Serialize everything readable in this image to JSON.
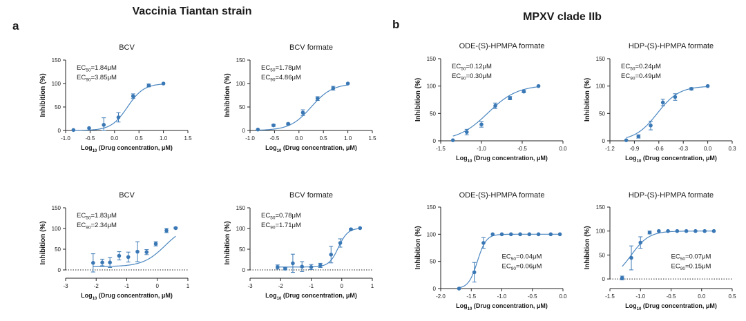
{
  "headings": {
    "left": "Vaccinia Tiantan strain",
    "right": "MPXV clade IIb",
    "panel_a": "a",
    "panel_b": "b"
  },
  "colors": {
    "data": "#3a78b5",
    "curve": "#4a86c0",
    "axis": "#222222"
  },
  "chart_data": [
    {
      "type": "scatter",
      "title": "BCV",
      "xlabel_pre": "Log",
      "xlabel_sub": "10",
      "xlabel_post": " (Drug concentration, μM)",
      "ylabel": "Inhibition (%)",
      "xlim": [
        -1.0,
        1.5
      ],
      "ylim": [
        0,
        150
      ],
      "xticks": [
        -1.0,
        -0.5,
        0.0,
        0.5,
        1.0,
        1.5
      ],
      "xtick_labels": [
        "-1.0",
        "-0.5",
        "0.0",
        "0.5",
        "1.0",
        "1.5"
      ],
      "yticks": [
        0,
        50,
        100,
        150
      ],
      "zero_line": false,
      "ec50": "1.84μM",
      "ec90": "3.85μM",
      "ec_label_pos": "top-left",
      "fit": {
        "bottom": 0,
        "top": 100,
        "logEC50": 0.265,
        "hill": 2.6
      },
      "points": [
        {
          "x": -0.84,
          "y": 1,
          "err": 1
        },
        {
          "x": -0.52,
          "y": 5,
          "err": 1
        },
        {
          "x": -0.22,
          "y": 12,
          "err": 15
        },
        {
          "x": 0.08,
          "y": 28,
          "err": 10
        },
        {
          "x": 0.38,
          "y": 73,
          "err": 5
        },
        {
          "x": 0.7,
          "y": 96,
          "err": 3
        },
        {
          "x": 1.0,
          "y": 100,
          "err": 1
        }
      ]
    },
    {
      "type": "scatter",
      "title": "BCV formate",
      "xlabel_pre": "Log",
      "xlabel_sub": "10",
      "xlabel_post": " (Drug concentration, μM)",
      "ylabel": "Inhibition (%)",
      "xlim": [
        -1.0,
        1.5
      ],
      "ylim": [
        0,
        150
      ],
      "xticks": [
        -1.0,
        -0.5,
        0.0,
        0.5,
        1.0,
        1.5
      ],
      "xtick_labels": [
        "-1.0",
        "-0.5",
        "0.0",
        "0.5",
        "1.0",
        "1.5"
      ],
      "yticks": [
        0,
        50,
        100,
        150
      ],
      "zero_line": false,
      "ec50": "1.78μM",
      "ec90": "4.86μM",
      "ec_label_pos": "top-left",
      "fit": {
        "bottom": 0,
        "top": 100,
        "logEC50": 0.25,
        "hill": 2.0
      },
      "points": [
        {
          "x": -0.84,
          "y": 2,
          "err": 1
        },
        {
          "x": -0.52,
          "y": 11,
          "err": 2
        },
        {
          "x": -0.22,
          "y": 14,
          "err": 2
        },
        {
          "x": 0.08,
          "y": 38,
          "err": 6
        },
        {
          "x": 0.38,
          "y": 68,
          "err": 4
        },
        {
          "x": 0.7,
          "y": 90,
          "err": 4
        },
        {
          "x": 1.0,
          "y": 100,
          "err": 1
        }
      ]
    },
    {
      "type": "scatter",
      "title": "BCV",
      "xlabel_pre": "Log",
      "xlabel_sub": "10",
      "xlabel_post": " (Drug concentration, μM)",
      "ylabel": "Inhibition (%)",
      "xlim": [
        -3,
        1
      ],
      "ylim": [
        -20,
        150
      ],
      "xticks": [
        -3,
        -2,
        -1,
        0,
        1
      ],
      "xtick_labels": [
        "-3",
        "-2",
        "-1",
        "0",
        "1"
      ],
      "yticks": [
        0,
        50,
        100,
        150
      ],
      "zero_line": true,
      "ec50": "1.83μM",
      "ec90": "2.34μM",
      "ec_label_pos": "top-left",
      "fit": {
        "bottom": 8,
        "top": 110,
        "logEC50": 0.26,
        "hill": 1.2
      },
      "points": [
        {
          "x": -2.1,
          "y": 17,
          "err": 22
        },
        {
          "x": -1.8,
          "y": 18,
          "err": 8
        },
        {
          "x": -1.55,
          "y": 18,
          "err": 12
        },
        {
          "x": -1.25,
          "y": 34,
          "err": 10
        },
        {
          "x": -0.95,
          "y": 31,
          "err": 12
        },
        {
          "x": -0.65,
          "y": 44,
          "err": 24
        },
        {
          "x": -0.35,
          "y": 43,
          "err": 6
        },
        {
          "x": -0.05,
          "y": 63,
          "err": 5
        },
        {
          "x": 0.3,
          "y": 95,
          "err": 5
        },
        {
          "x": 0.6,
          "y": 101,
          "err": 2
        }
      ]
    },
    {
      "type": "scatter",
      "title": "BCV formate",
      "xlabel_pre": "Log",
      "xlabel_sub": "10",
      "xlabel_post": " (Drug concentration, μM)",
      "ylabel": "Inhibition (%)",
      "xlim": [
        -3,
        1
      ],
      "ylim": [
        -20,
        150
      ],
      "xticks": [
        -3,
        -2,
        -1,
        0,
        1
      ],
      "xtick_labels": [
        "-3",
        "-2",
        "-1",
        "0",
        "1"
      ],
      "yticks": [
        0,
        50,
        100,
        150
      ],
      "zero_line": true,
      "ec50": "0.78μM",
      "ec90": "1.71μM",
      "ec_label_pos": "top-left",
      "fit": {
        "bottom": 7,
        "top": 101,
        "logEC50": -0.11,
        "hill": 2.8
      },
      "points": [
        {
          "x": -2.1,
          "y": 7,
          "err": 5
        },
        {
          "x": -1.85,
          "y": 3,
          "err": 3
        },
        {
          "x": -1.6,
          "y": 16,
          "err": 22
        },
        {
          "x": -1.3,
          "y": 8,
          "err": 12
        },
        {
          "x": -1.0,
          "y": 7,
          "err": 6
        },
        {
          "x": -0.7,
          "y": 11,
          "err": 5
        },
        {
          "x": -0.35,
          "y": 37,
          "err": 20
        },
        {
          "x": -0.05,
          "y": 65,
          "err": 10
        },
        {
          "x": 0.3,
          "y": 98,
          "err": 2
        },
        {
          "x": 0.6,
          "y": 101,
          "err": 1
        }
      ]
    },
    {
      "type": "scatter",
      "title": "ODE-(S)-HPMPA formate",
      "xlabel_pre": "Log",
      "xlabel_sub": "10",
      "xlabel_post": " (Drug concentration, μM)",
      "ylabel": "Inhibition (%)",
      "xlim": [
        -1.5,
        0.0
      ],
      "ylim": [
        0,
        150
      ],
      "xticks": [
        -1.5,
        -1.0,
        -0.5,
        0.0
      ],
      "xtick_labels": [
        "-1.5",
        "-1.0",
        "-0.5",
        "0.0"
      ],
      "yticks": [
        0,
        50,
        100,
        150
      ],
      "zero_line": false,
      "ec50": "0.12μM",
      "ec90": "0.30μM",
      "ec_label_pos": "top-left",
      "fit": {
        "bottom": 0,
        "top": 102,
        "logEC50": -0.92,
        "hill": 2.4
      },
      "points": [
        {
          "x": -1.35,
          "y": 1,
          "err": 1
        },
        {
          "x": -1.18,
          "y": 16,
          "err": 5
        },
        {
          "x": -1.0,
          "y": 30,
          "err": 5
        },
        {
          "x": -0.83,
          "y": 64,
          "err": 5
        },
        {
          "x": -0.65,
          "y": 78,
          "err": 3
        },
        {
          "x": -0.48,
          "y": 90,
          "err": 2
        },
        {
          "x": -0.3,
          "y": 100,
          "err": 1
        }
      ]
    },
    {
      "type": "scatter",
      "title": "HDP-(S)-HPMPA formate",
      "xlabel_pre": "Log",
      "xlabel_sub": "10",
      "xlabel_post": " (Drug concentration, μM)",
      "ylabel": "Inhibition (%)",
      "xlim": [
        -1.2,
        0.3
      ],
      "ylim": [
        0,
        150
      ],
      "xticks": [
        -1.2,
        -0.9,
        -0.6,
        -0.3,
        0.0,
        0.3
      ],
      "xtick_labels": [
        "-1.2",
        "-0.9",
        "-0.6",
        "-0.3",
        "0.0",
        "0.3"
      ],
      "yticks": [
        0,
        50,
        100,
        150
      ],
      "zero_line": false,
      "ec50": "0.24μM",
      "ec90": "0.49μM",
      "ec_label_pos": "top-left",
      "fit": {
        "bottom": 0,
        "top": 100,
        "logEC50": -0.62,
        "hill": 3.2
      },
      "points": [
        {
          "x": -1.0,
          "y": 1,
          "err": 1
        },
        {
          "x": -0.85,
          "y": 8,
          "err": 3
        },
        {
          "x": -0.7,
          "y": 28,
          "err": 8
        },
        {
          "x": -0.55,
          "y": 70,
          "err": 6
        },
        {
          "x": -0.4,
          "y": 80,
          "err": 6
        },
        {
          "x": -0.2,
          "y": 95,
          "err": 2
        },
        {
          "x": 0.0,
          "y": 100,
          "err": 1
        }
      ]
    },
    {
      "type": "scatter",
      "title": "ODE-(S)-HPMPA formate",
      "xlabel_pre": "Log",
      "xlabel_sub": "10",
      "xlabel_post": " (Drug concentration, μM)",
      "ylabel": "Inhibition (%)",
      "xlim": [
        -2.0,
        0.0
      ],
      "ylim": [
        0,
        150
      ],
      "xticks": [
        -2.0,
        -1.5,
        -1.0,
        -0.5,
        0.0
      ],
      "xtick_labels": [
        "-2.0",
        "-1.5",
        "-1.0",
        "-0.5",
        "0.0"
      ],
      "yticks": [
        0,
        50,
        100,
        150
      ],
      "zero_line": false,
      "ec50": "0.04μM",
      "ec90": "0.06μM",
      "ec_label_pos": "bottom-right",
      "fit": {
        "bottom": 0,
        "top": 100,
        "logEC50": -1.4,
        "hill": 6.0
      },
      "points": [
        {
          "x": -1.7,
          "y": 0,
          "err": 1
        },
        {
          "x": -1.45,
          "y": 30,
          "err": 18
        },
        {
          "x": -1.3,
          "y": 84,
          "err": 10
        },
        {
          "x": -1.15,
          "y": 100,
          "err": 1
        },
        {
          "x": -1.0,
          "y": 100,
          "err": 1
        },
        {
          "x": -0.85,
          "y": 100,
          "err": 1
        },
        {
          "x": -0.7,
          "y": 100,
          "err": 1
        },
        {
          "x": -0.55,
          "y": 100,
          "err": 1
        },
        {
          "x": -0.4,
          "y": 100,
          "err": 1
        },
        {
          "x": -0.2,
          "y": 100,
          "err": 1
        },
        {
          "x": -0.05,
          "y": 100,
          "err": 1
        }
      ]
    },
    {
      "type": "scatter",
      "title": "HDP-(S)-HPMPA formate",
      "xlabel_pre": "Log",
      "xlabel_sub": "10",
      "xlabel_post": " (Drug concentration, μM)",
      "ylabel": "Inhibition (%)",
      "xlim": [
        -1.5,
        0.5
      ],
      "ylim": [
        -20,
        150
      ],
      "xticks": [
        -1.5,
        -1.0,
        -0.5,
        0.0,
        0.5
      ],
      "xtick_labels": [
        "-1.5",
        "-1.0",
        "-0.5",
        "0.0",
        "0.5"
      ],
      "yticks": [
        0,
        50,
        100,
        150
      ],
      "zero_line": true,
      "ec50": "0.07μM",
      "ec90": "0.15μM",
      "ec_label_pos": "bottom-right",
      "fit": {
        "bottom": 0,
        "top": 100,
        "logEC50": -1.15,
        "hill": 3.0
      },
      "points": [
        {
          "x": -1.3,
          "y": 2,
          "err": 4
        },
        {
          "x": -1.15,
          "y": 44,
          "err": 25
        },
        {
          "x": -1.0,
          "y": 76,
          "err": 12
        },
        {
          "x": -0.85,
          "y": 97,
          "err": 3
        },
        {
          "x": -0.7,
          "y": 100,
          "err": 1
        },
        {
          "x": -0.55,
          "y": 100,
          "err": 1
        },
        {
          "x": -0.4,
          "y": 100,
          "err": 1
        },
        {
          "x": -0.25,
          "y": 100,
          "err": 1
        },
        {
          "x": -0.1,
          "y": 100,
          "err": 1
        },
        {
          "x": 0.05,
          "y": 100,
          "err": 1
        },
        {
          "x": 0.2,
          "y": 100,
          "err": 1
        }
      ]
    }
  ]
}
